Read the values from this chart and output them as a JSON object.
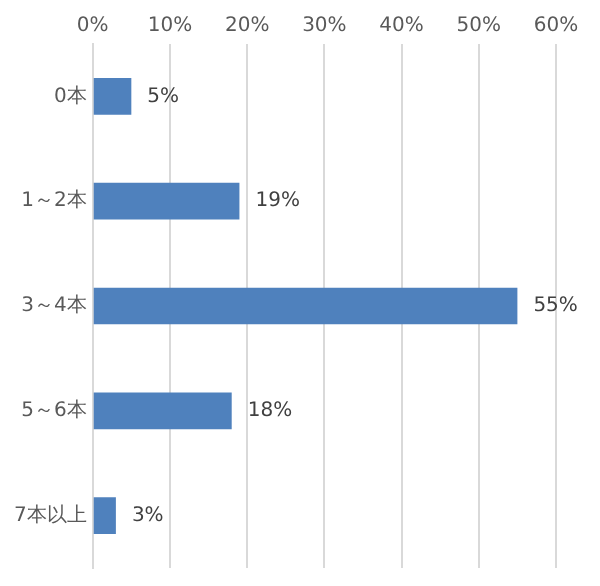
{
  "chart_data": {
    "type": "bar",
    "orientation": "horizontal",
    "categories": [
      "0本",
      "1～2本",
      "3～4本",
      "5～6本",
      "7本以上"
    ],
    "values": [
      5,
      19,
      55,
      18,
      3
    ],
    "value_labels": [
      "5%",
      "19%",
      "55%",
      "18%",
      "3%"
    ],
    "color": "#4f81bd",
    "xlim": [
      0,
      60
    ],
    "xticks": [
      {
        "value": 0,
        "label": "0%"
      },
      {
        "value": 10,
        "label": "10%"
      },
      {
        "value": 20,
        "label": "20%"
      },
      {
        "value": 30,
        "label": "30%"
      },
      {
        "value": 40,
        "label": "40%"
      },
      {
        "value": 50,
        "label": "50%"
      },
      {
        "value": 60,
        "label": "60%"
      }
    ],
    "grid": "x",
    "legend": false
  }
}
